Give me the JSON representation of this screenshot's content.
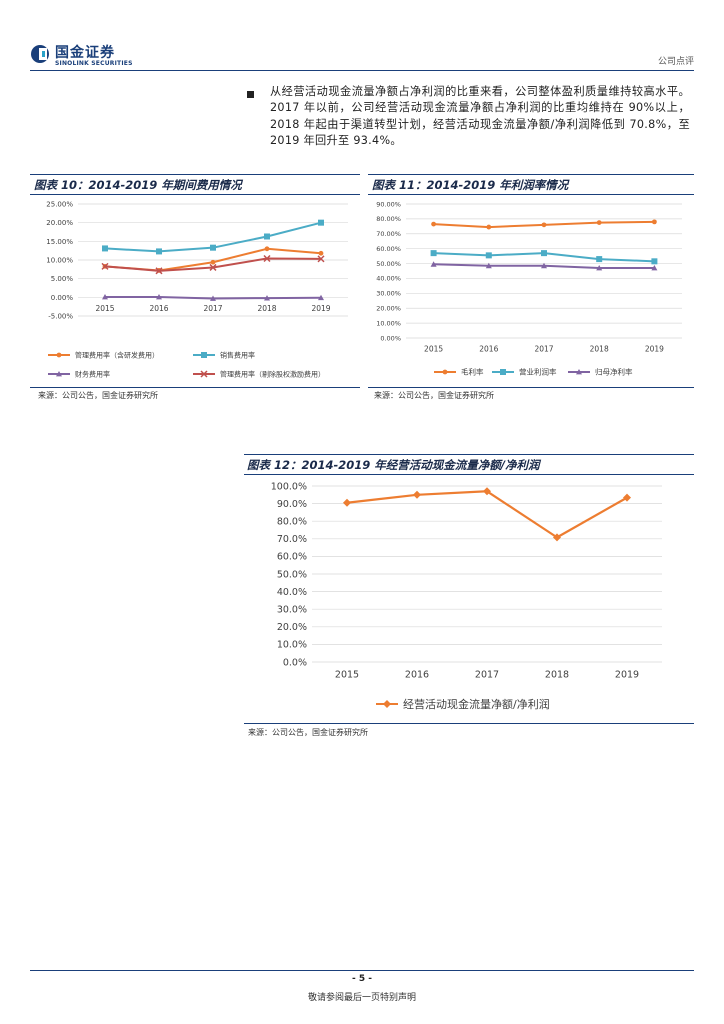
{
  "header": {
    "logo_cn": "国金证券",
    "logo_en": "SINOLINK SECURITIES",
    "report_type": "公司点评"
  },
  "body": {
    "paragraph": "从经营活动现金流量净额占净利润的比重来看，公司整体盈利质量维持较高水平。2017 年以前，公司经营活动现金流量净额占净利润的比重均维持在 90%以上，2018 年起由于渠道转型计划，经营活动现金流量净额/净利润降低到 70.8%，至 2019 年回升至 93.4%。"
  },
  "figures": {
    "fig10": {
      "title": "图表 10：2014-2019 年期间费用情况",
      "source": "来源：公司公告，国金证券研究所"
    },
    "fig11": {
      "title": "图表 11：2014-2019 年利润率情况",
      "source": "来源：公司公告，国金证券研究所"
    },
    "fig12": {
      "title": "图表 12：2014-2019 年经营活动现金流量净额/净利润",
      "source": "来源：公司公告，国金证券研究所"
    }
  },
  "footer": {
    "page_number": "- 5 -",
    "disclaimer": "敬请参阅最后一页特别声明"
  },
  "chart_data": [
    {
      "id": "fig10",
      "type": "line",
      "categories": [
        "2015",
        "2016",
        "2017",
        "2018",
        "2019"
      ],
      "ylim": [
        -5,
        25
      ],
      "yticks": [
        "-5.00%",
        "0.00%",
        "5.00%",
        "10.00%",
        "15.00%",
        "20.00%",
        "25.00%"
      ],
      "grid": true,
      "legend_position": "bottom",
      "series": [
        {
          "name": "管理费用率（含研发费用）",
          "color": "#ed7d31",
          "marker": "circle",
          "values": [
            8.3,
            7.2,
            9.4,
            13.0,
            11.8
          ]
        },
        {
          "name": "销售费用率",
          "color": "#4bacc6",
          "marker": "square",
          "values": [
            13.1,
            12.3,
            13.3,
            16.3,
            20.0
          ]
        },
        {
          "name": "财务费用率",
          "color": "#8064a2",
          "marker": "triangle",
          "values": [
            0.1,
            0.1,
            -0.3,
            -0.2,
            -0.1
          ]
        },
        {
          "name": "管理费用率（剔除股权激励费用）",
          "color": "#c0504d",
          "marker": "x",
          "values": [
            8.3,
            7.1,
            8.0,
            10.4,
            10.3
          ]
        }
      ]
    },
    {
      "id": "fig11",
      "type": "line",
      "categories": [
        "2015",
        "2016",
        "2017",
        "2018",
        "2019"
      ],
      "ylim": [
        0,
        90
      ],
      "yticks": [
        "0.00%",
        "10.00%",
        "20.00%",
        "30.00%",
        "40.00%",
        "50.00%",
        "60.00%",
        "70.00%",
        "80.00%",
        "90.00%"
      ],
      "grid": true,
      "legend_position": "bottom",
      "series": [
        {
          "name": "毛利率",
          "color": "#ed7d31",
          "marker": "circle",
          "values": [
            76.5,
            74.5,
            76.0,
            77.5,
            78.0
          ]
        },
        {
          "name": "营业利润率",
          "color": "#4bacc6",
          "marker": "square",
          "values": [
            57.0,
            55.5,
            57.0,
            53.0,
            51.5
          ]
        },
        {
          "name": "归母净利率",
          "color": "#8064a2",
          "marker": "triangle",
          "values": [
            49.5,
            48.5,
            48.5,
            47.0,
            47.0
          ]
        }
      ]
    },
    {
      "id": "fig12",
      "type": "line",
      "categories": [
        "2015",
        "2016",
        "2017",
        "2018",
        "2019"
      ],
      "ylim": [
        0,
        100
      ],
      "yticks": [
        "0.0%",
        "10.0%",
        "20.0%",
        "30.0%",
        "40.0%",
        "50.0%",
        "60.0%",
        "70.0%",
        "80.0%",
        "90.0%",
        "100.0%"
      ],
      "grid": true,
      "legend_position": "bottom",
      "series": [
        {
          "name": "经营活动现金流量净额/净利润",
          "color": "#ed7d31",
          "marker": "diamond",
          "values": [
            90.5,
            95.0,
            97.0,
            70.8,
            93.4
          ]
        }
      ]
    }
  ]
}
